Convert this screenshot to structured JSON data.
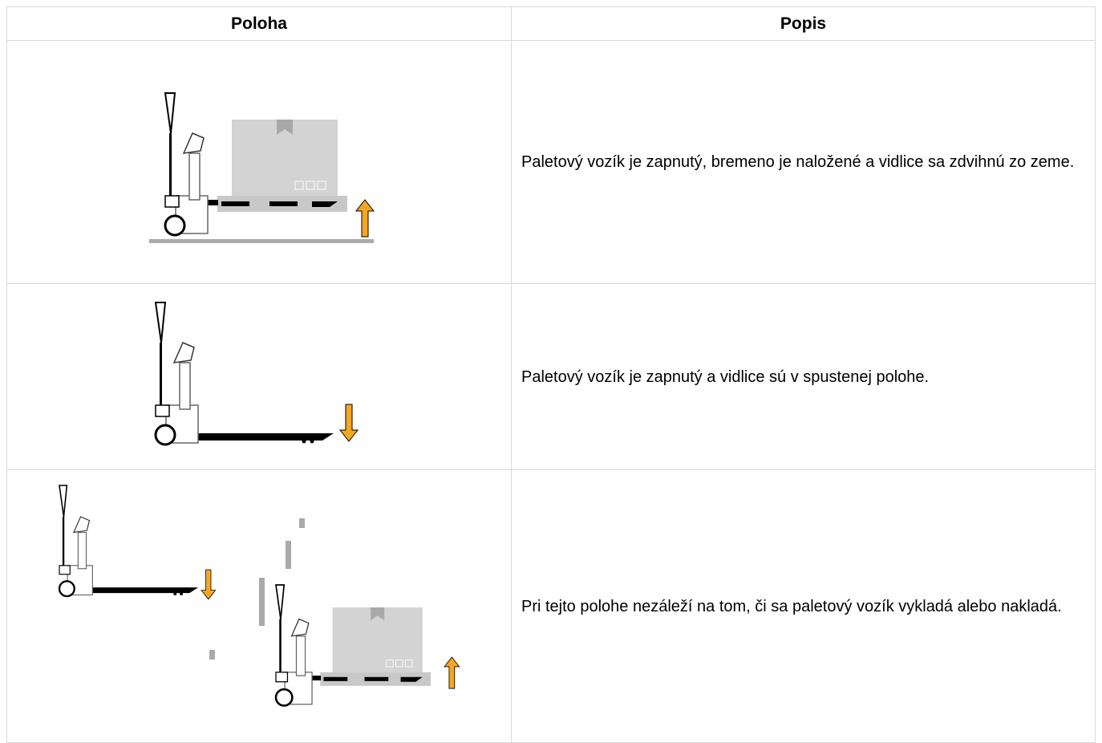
{
  "table": {
    "headers": [
      "Poloha",
      "Popis"
    ],
    "rows": [
      [
        "Paletový vozík je zapnutý, bremeno je naložené a vidlice sa zdvihnú zo zeme."
      ],
      [
        "Paletový vozík je zapnutý a vidlice sú v spustenej polohe."
      ],
      [
        "Pri tejto polohe nezáleží na tom, či sa paletový vozík vykladá alebo nakladá."
      ]
    ]
  }
}
